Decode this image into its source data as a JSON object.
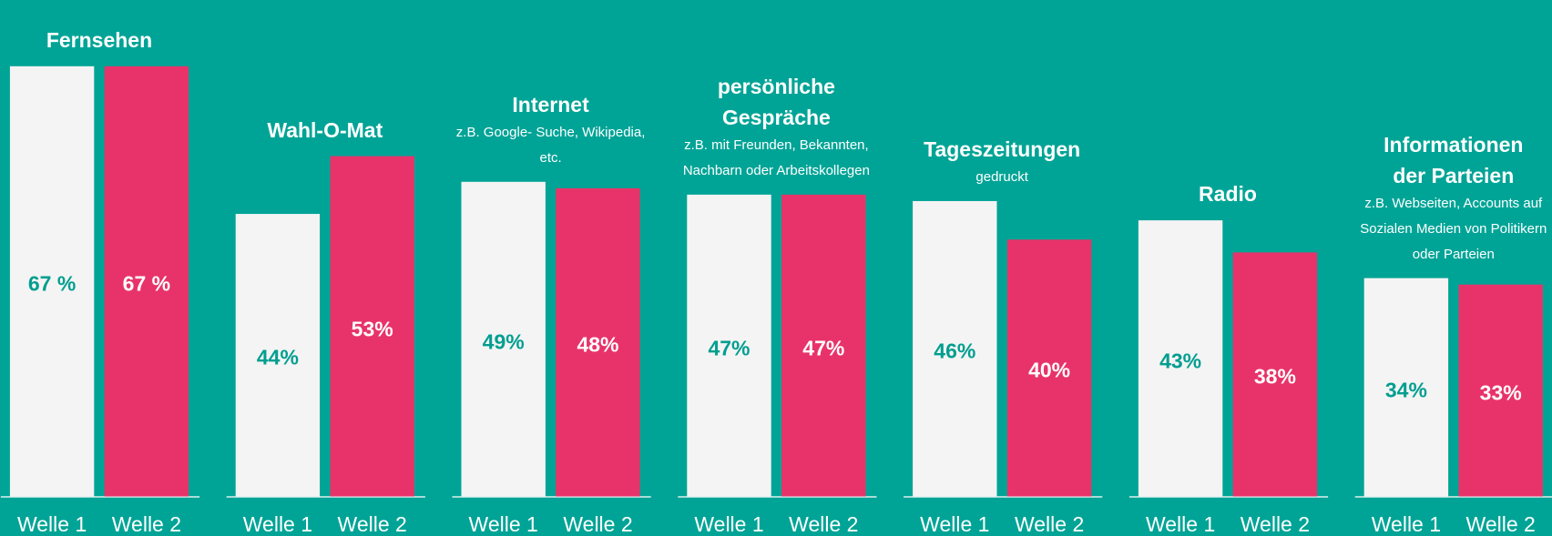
{
  "chart_data": {
    "type": "bar",
    "categories": [
      "Fernsehen",
      "Wahl-O-Mat",
      "Internet",
      "persönliche\nGespräche",
      "Tageszeitungen",
      "Radio",
      "Informationen\nder Parteien"
    ],
    "subtitles": [
      null,
      null,
      "z.B. Google- Suche, Wikipedia, etc.",
      "z.B. mit Freunden, Bekannten, Nachbarn oder Arbeitskollegen",
      "gedruckt",
      null,
      "z.B. Webseiten, Accounts auf Sozialen Medien von Politikern oder Parteien"
    ],
    "series": [
      {
        "name": "Welle 1",
        "color": "#f4f4f4",
        "label_color": "#009e90",
        "values": [
          67,
          44,
          49,
          47,
          46,
          43,
          34
        ],
        "value_labels": [
          "67 %",
          "44%",
          "49%",
          "47%",
          "46%",
          "43%",
          "34%"
        ]
      },
      {
        "name": "Welle 2",
        "color": "#e8336a",
        "label_color": "#ffffff",
        "values": [
          67,
          53,
          48,
          47,
          40,
          38,
          33
        ],
        "value_labels": [
          "67 %",
          "53%",
          "48%",
          "47%",
          "40%",
          "38%",
          "33%"
        ]
      }
    ],
    "ylim": [
      0,
      67
    ]
  }
}
